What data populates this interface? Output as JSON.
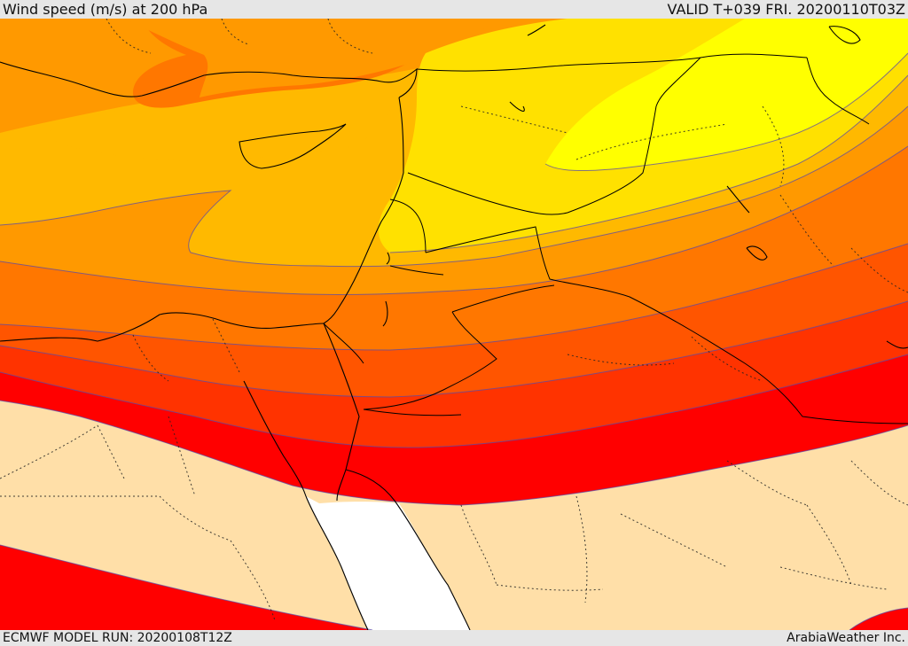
{
  "header": {
    "title": "Wind speed (m/s) at 200 hPa",
    "valid": "VALID T+039 FRI. 20200110T03Z"
  },
  "footer": {
    "model_run": "ECMWF MODEL RUN: 20200108T12Z",
    "credit": "ArabiaWeather Inc."
  },
  "map": {
    "field": "wind speed at 200 hPa",
    "colors": {
      "band_yellow": "#ffff00",
      "band_gold": "#ffe100",
      "band_amber": "#ffb900",
      "band_orange": "#ff9900",
      "band_dark_orange": "#ff7700",
      "band_orange_red": "#ff5500",
      "band_red_orange": "#ff3300",
      "band_red": "#ff0000",
      "low_speed": "#ffdfa8",
      "water_white": "#ffffff",
      "contour_line": "#5a4aa8",
      "border_line": "#000000"
    }
  }
}
